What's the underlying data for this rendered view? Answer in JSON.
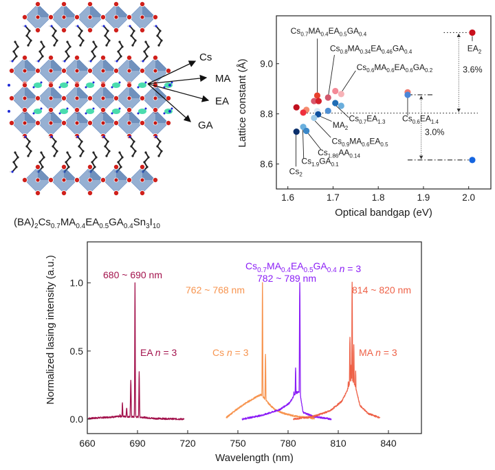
{
  "structure_panel": {
    "caption": [
      {
        "t": "(BA)"
      },
      {
        "t": "2",
        "sub": true
      },
      {
        "t": "Cs"
      },
      {
        "t": "0.7",
        "sub": true
      },
      {
        "t": "MA"
      },
      {
        "t": "0.4",
        "sub": true
      },
      {
        "t": "EA"
      },
      {
        "t": "0.5",
        "sub": true
      },
      {
        "t": "GA"
      },
      {
        "t": "0.4",
        "sub": true
      },
      {
        "t": "Sn"
      },
      {
        "t": "3",
        "sub": true
      },
      {
        "t": "I"
      },
      {
        "t": "10",
        "sub": true
      }
    ],
    "site_labels": [
      "Cs",
      "MA",
      "EA",
      "GA"
    ],
    "colors": {
      "octahedra": "#3f6fad",
      "iodine": "#d0201b",
      "nitrogen": "#1f2bd6",
      "carbon": "#222222",
      "cation": "#2bd6a0"
    }
  },
  "chart_data": [
    {
      "type": "scatter",
      "title": "",
      "xlabel": "Optical bandgap (eV)",
      "ylabel": "Lattice constant (Å)",
      "xlim": [
        1.58,
        2.05
      ],
      "ylim": [
        8.5,
        9.19
      ],
      "xticks": [
        1.6,
        1.7,
        1.8,
        1.9,
        2.0
      ],
      "xtick_labels": [
        "1.6",
        "1.7",
        "1.8",
        "1.9",
        "2.0"
      ],
      "yticks": [
        8.6,
        8.8,
        9.0
      ],
      "ytick_labels": [
        "8.6",
        "8.8",
        "9.0"
      ],
      "grid": false,
      "points": [
        {
          "x": 1.619,
          "y": 8.826,
          "color": "#c0101e"
        },
        {
          "x": 1.641,
          "y": 8.816,
          "color": "#f58a6e"
        },
        {
          "x": 1.634,
          "y": 8.805,
          "color": "#ef2f3d"
        },
        {
          "x": 1.665,
          "y": 8.873,
          "color": "#e8402c"
        },
        {
          "x": 1.658,
          "y": 8.851,
          "color": "#d9566b"
        },
        {
          "x": 1.668,
          "y": 8.851,
          "color": "#d4202c"
        },
        {
          "x": 1.665,
          "y": 8.811,
          "color": "#dbe8f5"
        },
        {
          "x": 1.667,
          "y": 8.798,
          "color": "#0d4f9e"
        },
        {
          "x": 1.658,
          "y": 8.784,
          "color": "#9fcbe8"
        },
        {
          "x": 1.689,
          "y": 8.865,
          "color": "#d2586c"
        },
        {
          "x": 1.689,
          "y": 8.812,
          "color": "#4f8fd3"
        },
        {
          "x": 1.705,
          "y": 8.891,
          "color": "#f48a97"
        },
        {
          "x": 1.718,
          "y": 8.879,
          "color": "#f7b2b7"
        },
        {
          "x": 1.705,
          "y": 8.843,
          "color": "#1f6db5"
        },
        {
          "x": 1.718,
          "y": 8.832,
          "color": "#6aaedc"
        },
        {
          "x": 1.619,
          "y": 8.729,
          "color": "#0b2f6b"
        },
        {
          "x": 1.634,
          "y": 8.748,
          "color": "#6ab0de"
        },
        {
          "x": 1.641,
          "y": 8.732,
          "color": "#3a87c8"
        },
        {
          "x": 1.865,
          "y": 8.886,
          "color": "#ef7a6f"
        },
        {
          "x": 1.865,
          "y": 8.876,
          "color": "#4a86d8"
        },
        {
          "x": 2.008,
          "y": 9.124,
          "color": "#c8101c"
        },
        {
          "x": 2.008,
          "y": 8.616,
          "color": "#1565e0"
        }
      ],
      "annotations": [
        {
          "parts": [
            {
              "t": "Cs"
            },
            {
              "t": "0.7",
              "sub": true
            },
            {
              "t": "MA"
            },
            {
              "t": "0.4",
              "sub": true
            },
            {
              "t": "EA"
            },
            {
              "t": "0.5",
              "sub": true
            },
            {
              "t": "GA"
            },
            {
              "t": "0.4",
              "sub": true
            }
          ],
          "x": 1.606,
          "y": 9.12,
          "lx1": 1.665,
          "ly1": 9.1,
          "lx2": 1.665,
          "ly2": 8.885
        },
        {
          "parts": [
            {
              "t": "Cs"
            },
            {
              "t": "0.8",
              "sub": true
            },
            {
              "t": "MA"
            },
            {
              "t": "0.34",
              "sub": true
            },
            {
              "t": "EA"
            },
            {
              "t": "0.46",
              "sub": true
            },
            {
              "t": "GA"
            },
            {
              "t": "0.4",
              "sub": true
            }
          ],
          "x": 1.693,
          "y": 9.05,
          "lx1": 1.703,
          "ly1": 9.035,
          "lx2": 1.69,
          "ly2": 8.877
        },
        {
          "parts": [
            {
              "t": "Cs"
            },
            {
              "t": "0.6",
              "sub": true
            },
            {
              "t": "MA"
            },
            {
              "t": "0.6",
              "sub": true
            },
            {
              "t": "EA"
            },
            {
              "t": "0.6",
              "sub": true
            },
            {
              "t": "GA"
            },
            {
              "t": "0.2",
              "sub": true
            }
          ],
          "x": 1.752,
          "y": 8.975,
          "lx1": 1.75,
          "ly1": 8.972,
          "lx2": 1.72,
          "ly2": 8.89
        },
        {
          "parts": [
            {
              "t": "Cs"
            },
            {
              "t": "0.7",
              "sub": true
            },
            {
              "t": "EA"
            },
            {
              "t": "1.3",
              "sub": true
            }
          ],
          "x": 1.735,
          "y": 8.77,
          "lx1": 1.735,
          "ly1": 8.785,
          "lx2": 1.707,
          "ly2": 8.832
        },
        {
          "parts": [
            {
              "t": "MA"
            },
            {
              "t": "2",
              "sub": true
            }
          ],
          "x": 1.699,
          "y": 8.745,
          "lx1": 1.697,
          "ly1": 8.77,
          "lx2": 1.672,
          "ly2": 8.79
        },
        {
          "parts": [
            {
              "t": "Cs"
            },
            {
              "t": "0.9",
              "sub": true
            },
            {
              "t": "MA"
            },
            {
              "t": "0.6",
              "sub": true
            },
            {
              "t": "EA"
            },
            {
              "t": "0.5",
              "sub": true
            }
          ],
          "x": 1.697,
          "y": 8.68,
          "lx1": 1.695,
          "ly1": 8.706,
          "lx2": 1.66,
          "ly2": 8.772
        },
        {
          "parts": [
            {
              "t": "Cs"
            },
            {
              "t": "1.86",
              "sub": true
            },
            {
              "t": "AA"
            },
            {
              "t": "0.14",
              "sub": true
            }
          ],
          "x": 1.666,
          "y": 8.635,
          "lx1": 1.673,
          "ly1": 8.658,
          "lx2": 1.645,
          "ly2": 8.722
        },
        {
          "parts": [
            {
              "t": "Cs"
            },
            {
              "t": "1.9",
              "sub": true
            },
            {
              "t": "GA"
            },
            {
              "t": "0.1",
              "sub": true
            }
          ],
          "x": 1.63,
          "y": 8.6,
          "lx1": 1.635,
          "ly1": 8.622,
          "lx2": 1.633,
          "ly2": 8.737
        },
        {
          "parts": [
            {
              "t": "Cs"
            },
            {
              "t": "2",
              "sub": true
            }
          ],
          "x": 1.603,
          "y": 8.56,
          "lx1": 1.618,
          "ly1": 8.59,
          "lx2": 1.618,
          "ly2": 8.717
        },
        {
          "parts": [
            {
              "t": "Cs"
            },
            {
              "t": "0.6",
              "sub": true
            },
            {
              "t": "EA"
            },
            {
              "t": "1.4",
              "sub": true
            }
          ],
          "x": 1.853,
          "y": 8.77,
          "lx1": 1.865,
          "ly1": 8.793,
          "lx2": 1.865,
          "ly2": 8.864
        },
        {
          "parts": [
            {
              "t": "EA"
            },
            {
              "t": "2",
              "sub": true
            }
          ],
          "x": 1.997,
          "y": 9.05,
          "lx1": 2.008,
          "ly1": 9.09,
          "lx2": 2.008,
          "ly2": 9.11
        }
      ],
      "reference_lines": [
        {
          "style": "dotted",
          "y": 8.803,
          "x1": 1.635,
          "x2": 2.02
        },
        {
          "style": "dotted",
          "y": 9.124,
          "x1": 1.945,
          "x2": 2.0
        },
        {
          "style": "dashdot",
          "y": 8.876,
          "x1": 1.865,
          "x2": 1.92
        },
        {
          "style": "dashdot",
          "y": 8.616,
          "x1": 1.865,
          "x2": 2.0
        }
      ],
      "range_arrows": [
        {
          "x": 1.978,
          "y1": 9.118,
          "y2": 8.809,
          "label": "3.6%",
          "lx": 1.987,
          "ly": 8.965
        },
        {
          "x": 1.895,
          "y1": 8.87,
          "y2": 8.621,
          "label": "3.0%",
          "lx": 1.903,
          "ly": 8.715
        }
      ]
    },
    {
      "type": "line",
      "title": "",
      "xlabel": "Wavelength (nm)",
      "ylabel": "Normalized lasing intensity (a.u.)",
      "xlim": [
        660,
        860
      ],
      "ylim": [
        -0.1,
        1.3
      ],
      "xticks": [
        660,
        690,
        720,
        750,
        780,
        810,
        840
      ],
      "xtick_labels": [
        "660",
        "690",
        "720",
        "750",
        "780",
        "810",
        "840"
      ],
      "yticks": [
        0.0,
        0.5,
        1.0
      ],
      "ytick_labels": [
        "0.0",
        "0.5",
        "1.0"
      ],
      "grid": false,
      "series": [
        {
          "name": "EA n = 3",
          "color": "#a3124c",
          "range": [
            660.5,
            718
          ],
          "baseline": [
            [
              660.5,
              0.005
            ],
            [
              680,
              0.02
            ],
            [
              692,
              0.015
            ],
            [
              700,
              0.005
            ],
            [
              718,
              0.0
            ]
          ],
          "peaks": [
            [
              679.5,
              0.03,
              0.25
            ],
            [
              681,
              0.12,
              0.25
            ],
            [
              683.5,
              0.085,
              0.3
            ],
            [
              686,
              0.28,
              0.3
            ],
            [
              688.5,
              1.0,
              0.22
            ],
            [
              691,
              0.35,
              0.25
            ]
          ],
          "range_label": "680 ~ 690 nm",
          "name_label": {
            "pre": "EA ",
            "italic": "n",
            "post": " = 3"
          }
        },
        {
          "name": "Cs n = 3",
          "color": "#f7944f",
          "range": [
            743,
            796
          ],
          "baseline": [
            [
              743,
              0.01
            ],
            [
              748,
              0.06
            ],
            [
              755,
              0.12
            ],
            [
              762,
              0.17
            ],
            [
              764,
              0.18
            ],
            [
              768,
              0.12
            ],
            [
              772,
              0.07
            ],
            [
              778,
              0.04
            ],
            [
              785,
              0.02
            ],
            [
              796,
              0.005
            ]
          ],
          "peaks": [
            [
              763.2,
              0.18,
              0.35
            ],
            [
              764.7,
              1.0,
              0.25
            ],
            [
              766.5,
              0.48,
              0.3
            ]
          ],
          "range_label": "762 ~ 768 nm",
          "name_label": {
            "pre": "Cs ",
            "italic": "n",
            "post": " = 3"
          }
        },
        {
          "name": "Cs0.7MA0.4EA0.5GA0.4 n = 3",
          "color": "#8a1cf6",
          "range": [
            752.5,
            806
          ],
          "baseline": [
            [
              752.5,
              0.0
            ],
            [
              765,
              0.03
            ],
            [
              775,
              0.07
            ],
            [
              781,
              0.12
            ],
            [
              784,
              0.18
            ],
            [
              786,
              0.2
            ],
            [
              787,
              0.2
            ],
            [
              789,
              0.05
            ],
            [
              795,
              0.02
            ],
            [
              806,
              0.0
            ]
          ],
          "peaks": [
            [
              782,
              0.08,
              0.5
            ],
            [
              783.5,
              0.2,
              0.35
            ],
            [
              784.5,
              0.38,
              0.3
            ],
            [
              785.3,
              0.2,
              0.3
            ],
            [
              787,
              1.0,
              0.3
            ]
          ],
          "range_label": "782 ~ 789 nm",
          "name_label": {
            "formula": [
              {
                "t": "Cs"
              },
              {
                "t": "0.7",
                "sub": true
              },
              {
                "t": "MA"
              },
              {
                "t": "0.4",
                "sub": true
              },
              {
                "t": "EA"
              },
              {
                "t": "0.5",
                "sub": true
              },
              {
                "t": "GA"
              },
              {
                "t": "0.4",
                "sub": true
              }
            ],
            "pre": " ",
            "italic": "n",
            "post": " = 3"
          }
        },
        {
          "name": "MA n = 3",
          "color": "#ee6147",
          "range": [
            783,
            835
          ],
          "baseline": [
            [
              783,
              0.0
            ],
            [
              795,
              0.02
            ],
            [
              805,
              0.06
            ],
            [
              812,
              0.13
            ],
            [
              815,
              0.2
            ],
            [
              818,
              0.3
            ],
            [
              820,
              0.25
            ],
            [
              823,
              0.1
            ],
            [
              828,
              0.04
            ],
            [
              835,
              0.01
            ]
          ],
          "peaks": [
            [
              816,
              0.28,
              0.4
            ],
            [
              817,
              0.6,
              0.35
            ],
            [
              817.8,
              0.4,
              0.3
            ],
            [
              818.3,
              1.0,
              0.25
            ],
            [
              819.3,
              0.55,
              0.3
            ],
            [
              820.4,
              0.35,
              0.3
            ]
          ],
          "range_label": "814 ~ 820 nm",
          "name_label": {
            "pre": "MA ",
            "italic": "n",
            "post": " = 3"
          }
        }
      ]
    }
  ]
}
